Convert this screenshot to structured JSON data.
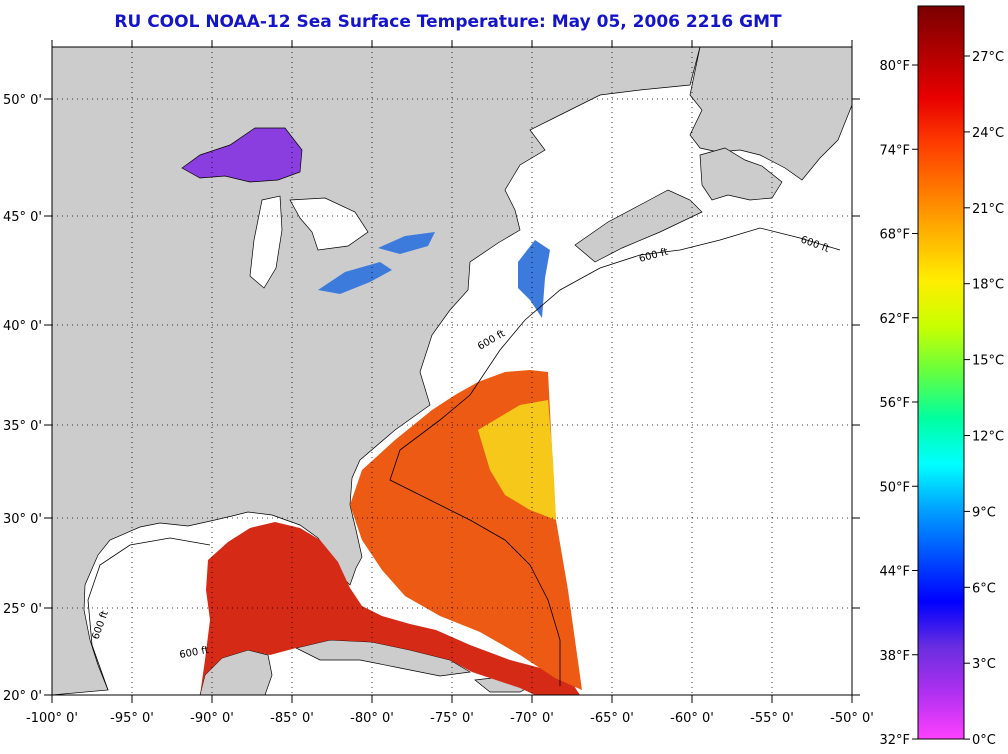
{
  "title": "RU COOL  NOAA-12  Sea Surface Temperature:  May 05, 2006 2216 GMT",
  "map": {
    "lon_labels": [
      "-100° 0'",
      "-95° 0'",
      "-90° 0'",
      "-85° 0'",
      "-80° 0'",
      "-75° 0'",
      "-70° 0'",
      "-65° 0'",
      "-60° 0'",
      "-55° 0'",
      "-50° 0'"
    ],
    "lat_labels": [
      "50° 0'",
      "45° 0'",
      "40° 0'",
      "35° 0'",
      "30° 0'",
      "25° 0'",
      "20° 0'"
    ],
    "isobath_label": "600 ft",
    "colors": {
      "land": "#cccccc",
      "ocean_nodata": "#ffffff",
      "gulf_sst": "#d42a16",
      "gulf_stream_sst": "#ec5a14",
      "sargasso_sst": "#f6c81a",
      "lake_superior": "#8a3ee0",
      "lake_blue": "#3c7adc"
    }
  },
  "colorbar": {
    "fahrenheit_labels": [
      "80°F",
      "74°F",
      "68°F",
      "62°F",
      "56°F",
      "50°F",
      "44°F",
      "38°F",
      "32°F"
    ],
    "celsius_labels": [
      "27°C",
      "24°C",
      "21°C",
      "18°C",
      "15°C",
      "12°C",
      "9°C",
      "6°C",
      "3°C",
      "0°C"
    ],
    "gradient_stops": [
      "#7a0000",
      "#b00000",
      "#e80000",
      "#ff3c00",
      "#ff7800",
      "#ffb400",
      "#ffee00",
      "#c8ff00",
      "#64ff40",
      "#00ffa0",
      "#00ffff",
      "#00a0ff",
      "#0050ff",
      "#0000ff",
      "#6a2ee0",
      "#b030f0",
      "#ff40ff"
    ]
  }
}
